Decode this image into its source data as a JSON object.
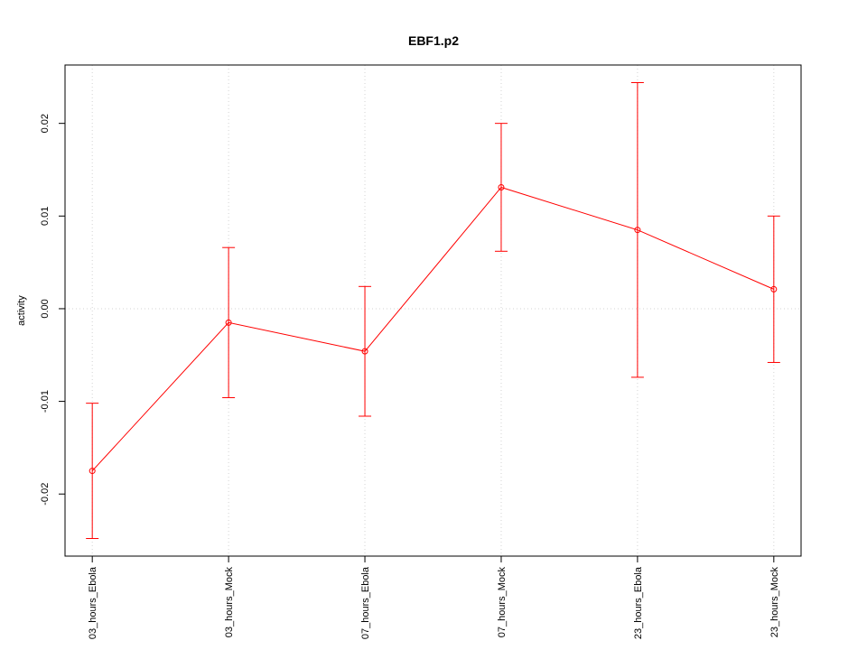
{
  "chart_data": {
    "type": "errorbar-line",
    "title": "EBF1.p2",
    "y_label": "activity",
    "categories": [
      "03_hours_Ebola",
      "03_hours_Mock",
      "07_hours_Ebola",
      "07_hours_Mock",
      "23_hours_Ebola",
      "23_hours_Mock"
    ],
    "values": [
      -0.0175,
      -0.0015,
      -0.0046,
      0.0131,
      0.0085,
      0.0021
    ],
    "errors": [
      0.0073,
      0.0081,
      0.007,
      0.0069,
      0.0159,
      0.0079
    ],
    "color": "#ff0000",
    "ylim": [
      -0.0267,
      0.0263
    ],
    "yticks": [
      -0.02,
      -0.01,
      {
        "value": 0,
        "label": "0.00"
      },
      0.01,
      0.02
    ],
    "grid": true
  }
}
